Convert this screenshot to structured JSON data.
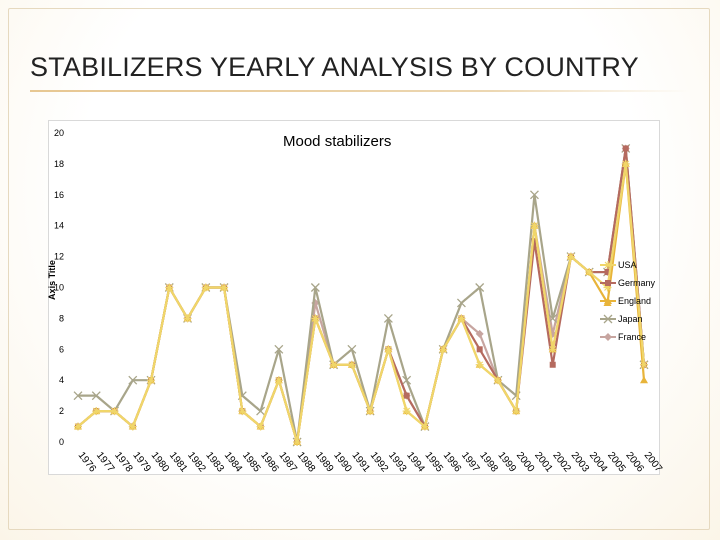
{
  "slide": {
    "title": "STABILIZERS YEARLY ANALYSIS BY COUNTRY"
  },
  "colors": {
    "title_rule": "#e7c792",
    "USA": "#f0d66a",
    "Germany": "#b56a5f",
    "England": "#e8b43a",
    "Japan": "#a8a58a",
    "France": "#c7a5a0"
  },
  "chart_data": {
    "type": "line",
    "title": "Mood stabilizers",
    "xlabel": "",
    "ylabel": "Axis Title",
    "ylim": [
      0,
      20
    ],
    "yticks": [
      0,
      2,
      4,
      6,
      8,
      10,
      12,
      14,
      16,
      18,
      20
    ],
    "grid": false,
    "legend": "right",
    "x": [
      "1976",
      "1977",
      "1978",
      "1979",
      "1980",
      "1981",
      "1982",
      "1983",
      "1984",
      "1985",
      "1986",
      "1987",
      "1988",
      "1989",
      "1990",
      "1991",
      "1992",
      "1993",
      "1994",
      "1995",
      "1996",
      "1997",
      "1998",
      "1999",
      "2000",
      "2001",
      "2002",
      "2003",
      "2004",
      "2005",
      "2006",
      "2007"
    ],
    "series": [
      {
        "name": "USA",
        "marker": "star",
        "values": [
          1,
          2,
          2,
          1,
          4,
          10,
          8,
          10,
          10,
          2,
          1,
          4,
          0,
          8,
          5,
          5,
          2,
          6,
          2,
          1,
          6,
          8,
          5,
          4,
          2,
          14,
          6,
          12,
          11,
          10,
          18,
          5
        ]
      },
      {
        "name": "Germany",
        "marker": "square",
        "values": [
          1,
          2,
          2,
          1,
          4,
          10,
          8,
          10,
          10,
          2,
          1,
          4,
          0,
          8,
          5,
          5,
          2,
          6,
          3,
          1,
          6,
          8,
          6,
          4,
          2,
          13,
          5,
          12,
          11,
          11,
          19,
          5
        ]
      },
      {
        "name": "England",
        "marker": "triangle",
        "values": [
          1,
          2,
          2,
          1,
          4,
          10,
          8,
          10,
          10,
          2,
          1,
          4,
          0,
          8,
          5,
          5,
          2,
          6,
          2,
          1,
          6,
          8,
          5,
          4,
          2,
          14,
          6,
          12,
          11,
          9,
          18,
          4
        ]
      },
      {
        "name": "Japan",
        "marker": "x",
        "values": [
          3,
          3,
          2,
          4,
          4,
          10,
          8,
          10,
          10,
          3,
          2,
          6,
          0,
          10,
          5,
          6,
          2,
          8,
          4,
          1,
          6,
          9,
          10,
          4,
          3,
          16,
          8,
          12,
          11,
          11,
          19,
          5
        ]
      },
      {
        "name": "France",
        "marker": "diamond",
        "values": [
          1,
          2,
          2,
          1,
          4,
          10,
          8,
          10,
          10,
          2,
          1,
          4,
          0,
          9,
          5,
          5,
          2,
          6,
          3,
          1,
          6,
          8,
          7,
          4,
          2,
          14,
          7,
          12,
          11,
          11,
          19,
          5
        ]
      }
    ]
  }
}
